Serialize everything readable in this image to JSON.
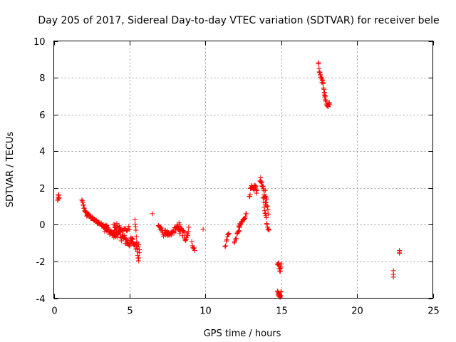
{
  "chart_data": {
    "type": "scatter",
    "title": "Day 205 of 2017, Sidereal Day-to-day VTEC variation (SDTVAR) for receiver bele",
    "xlabel": "GPS time / hours",
    "ylabel": "SDTVAR / TECUs",
    "xlim": [
      0,
      25
    ],
    "ylim": [
      -4,
      10
    ],
    "xticks": [
      0,
      5,
      10,
      15,
      20,
      25
    ],
    "yticks": [
      -4,
      -2,
      0,
      2,
      4,
      6,
      8,
      10
    ],
    "grid": true,
    "marker": "+",
    "color": "#ff0000",
    "segments": [
      {
        "x0": 0.25,
        "x1": 0.35,
        "y": [
          1.3,
          1.5,
          1.6,
          1.4
        ],
        "n": 8,
        "j": 0.1
      },
      {
        "x0": 1.85,
        "x1": 2.2,
        "y": [
          1.3,
          1.0,
          0.7,
          0.5
        ],
        "n": 14,
        "j": 0.1
      },
      {
        "x0": 2.2,
        "x1": 3.5,
        "y": [
          0.6,
          0.35,
          0.15,
          0.0,
          -0.1
        ],
        "n": 50,
        "j": 0.08
      },
      {
        "x0": 3.3,
        "x1": 4.1,
        "y": [
          -0.2,
          -0.3,
          -0.5,
          -0.7
        ],
        "n": 30,
        "j": 0.15
      },
      {
        "x0": 3.9,
        "x1": 5.2,
        "y": [
          -0.2,
          -0.4,
          -0.6,
          -0.8,
          -1.0,
          -0.9
        ],
        "n": 50,
        "j": 0.25
      },
      {
        "x0": 4.0,
        "x1": 5.0,
        "y": [
          0.0,
          -0.1,
          -0.3,
          -0.2
        ],
        "n": 20,
        "j": 0.15
      },
      {
        "x0": 5.1,
        "x1": 5.6,
        "y": [
          -0.8,
          -1.0,
          -1.3,
          -1.1
        ],
        "n": 14,
        "j": 0.15
      },
      {
        "x0": 5.35,
        "x1": 5.65,
        "y": [
          0.2,
          -0.4,
          -1.2,
          -2.0,
          -1.4
        ],
        "n": 14,
        "j": 0.15
      },
      {
        "x0": 6.5,
        "x1": 6.5,
        "y": [
          0.6
        ],
        "n": 1,
        "j": 0
      },
      {
        "x0": 6.9,
        "x1": 7.6,
        "y": [
          0.0,
          -0.3,
          -0.5,
          -0.4,
          -0.6
        ],
        "n": 24,
        "j": 0.15
      },
      {
        "x0": 7.6,
        "x1": 8.3,
        "y": [
          -0.6,
          -0.5,
          -0.3,
          -0.1,
          -0.4
        ],
        "n": 22,
        "j": 0.15
      },
      {
        "x0": 8.2,
        "x1": 8.9,
        "y": [
          0.0,
          -0.3,
          -0.5,
          -0.7,
          -0.2
        ],
        "n": 24,
        "j": 0.25
      },
      {
        "x0": 9.1,
        "x1": 9.3,
        "y": [
          -1.0,
          -1.2,
          -1.4
        ],
        "n": 6,
        "j": 0.1
      },
      {
        "x0": 9.85,
        "x1": 9.85,
        "y": [
          -0.25
        ],
        "n": 1,
        "j": 0
      },
      {
        "x0": 11.3,
        "x1": 11.55,
        "y": [
          -1.2,
          -0.9,
          -0.6,
          -0.4
        ],
        "n": 8,
        "j": 0.1
      },
      {
        "x0": 11.9,
        "x1": 12.3,
        "y": [
          -1.0,
          -0.7,
          -0.4,
          -0.1
        ],
        "n": 12,
        "j": 0.1
      },
      {
        "x0": 12.2,
        "x1": 12.7,
        "y": [
          -0.1,
          0.1,
          0.3,
          0.6
        ],
        "n": 16,
        "j": 0.08
      },
      {
        "x0": 12.9,
        "x1": 13.4,
        "y": [
          1.6,
          2.0,
          1.9,
          2.1,
          1.8
        ],
        "n": 22,
        "j": 0.15
      },
      {
        "x0": 13.6,
        "x1": 14.0,
        "y": [
          2.5,
          2.3,
          2.0,
          1.6,
          1.1
        ],
        "n": 18,
        "j": 0.15
      },
      {
        "x0": 13.8,
        "x1": 14.2,
        "y": [
          1.5,
          0.9,
          0.4,
          -0.1,
          -0.2
        ],
        "n": 16,
        "j": 0.15
      },
      {
        "x0": 13.95,
        "x1": 14.15,
        "y": [
          1.8,
          1.4,
          1.0,
          0.6
        ],
        "n": 8,
        "j": 0.1
      },
      {
        "x0": 14.75,
        "x1": 15.0,
        "y": [
          -2.0,
          -2.2,
          -2.5,
          -2.1
        ],
        "n": 14,
        "j": 0.15
      },
      {
        "x0": 14.75,
        "x1": 15.0,
        "y": [
          -3.6,
          -3.8,
          -3.9,
          -3.7
        ],
        "n": 14,
        "j": 0.1
      },
      {
        "x0": 17.45,
        "x1": 17.9,
        "y": [
          8.8,
          8.3,
          8.0,
          7.8,
          7.4,
          7.0
        ],
        "n": 22,
        "j": 0.15
      },
      {
        "x0": 17.85,
        "x1": 18.2,
        "y": [
          7.0,
          6.6,
          6.4,
          6.6
        ],
        "n": 14,
        "j": 0.1
      },
      {
        "x0": 22.4,
        "x1": 22.4,
        "y": [
          -2.5,
          -2.7,
          -2.85
        ],
        "n": 3,
        "j": 0
      },
      {
        "x0": 22.8,
        "x1": 22.8,
        "y": [
          -1.4,
          -1.5,
          -1.55
        ],
        "n": 3,
        "j": 0
      }
    ]
  }
}
